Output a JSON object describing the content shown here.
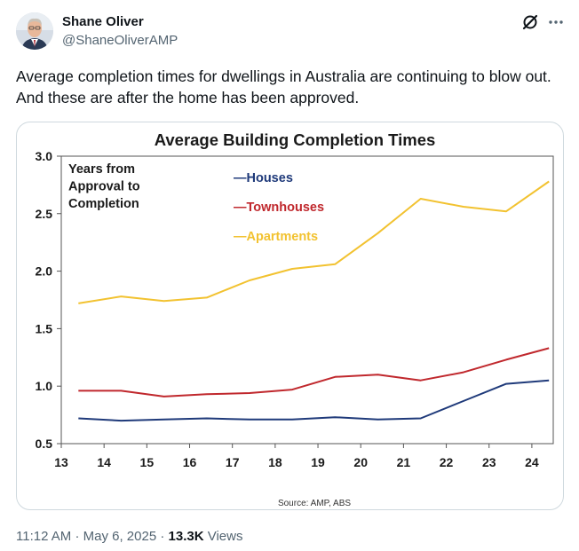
{
  "author": {
    "name": "Shane Oliver",
    "handle": "@ShaneOliverAMP"
  },
  "tweet": {
    "text": "Average completion times for dwellings in Australia are continuing to blow out. And these are after the home has been approved."
  },
  "meta": {
    "time": "11:12 AM",
    "separator1": "·",
    "date": "May 6, 2025",
    "separator2": "·",
    "views_count": "13.3K",
    "views_label": "Views"
  },
  "icons": {
    "grok": "grok-icon",
    "more": "more-icon"
  },
  "chart_data": {
    "type": "line",
    "title": "Average Building Completion Times",
    "annotation": [
      "Years from",
      "Approval to",
      "Completion"
    ],
    "source": "Source: AMP, ABS",
    "x": [
      13.4,
      14.4,
      15.4,
      16.4,
      17.4,
      18.4,
      19.4,
      20.4,
      21.4,
      22.4,
      23.4,
      24.4
    ],
    "xlim": [
      13,
      24.5
    ],
    "xticks": [
      "13",
      "14",
      "15",
      "16",
      "17",
      "18",
      "19",
      "20",
      "21",
      "22",
      "23",
      "24"
    ],
    "ylim": [
      0.5,
      3.0
    ],
    "yticks": [
      "0.5",
      "1.0",
      "1.5",
      "2.0",
      "2.5",
      "3.0"
    ],
    "series": [
      {
        "name": "—Houses",
        "color": "#1f3a7a",
        "values": [
          0.72,
          0.7,
          0.71,
          0.72,
          0.71,
          0.71,
          0.73,
          0.71,
          0.72,
          0.87,
          1.02,
          1.05
        ]
      },
      {
        "name": "—Townhouses",
        "color": "#c0282d",
        "values": [
          0.96,
          0.96,
          0.91,
          0.93,
          0.94,
          0.97,
          1.08,
          1.1,
          1.05,
          1.12,
          1.23,
          1.33
        ]
      },
      {
        "name": "—Apartments",
        "color": "#f2c230",
        "values": [
          1.72,
          1.78,
          1.74,
          1.77,
          1.92,
          2.02,
          2.06,
          2.33,
          2.63,
          2.56,
          2.52,
          2.78
        ]
      }
    ]
  }
}
